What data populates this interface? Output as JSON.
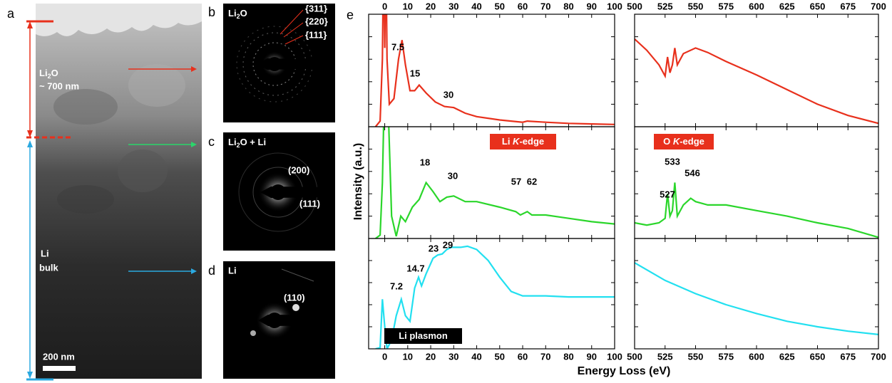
{
  "panel_a": {
    "label": "a",
    "upper_layer": {
      "line1": [
        "Li",
        "2",
        "O"
      ],
      "line2": "~ 700 nm"
    },
    "lower_layer": {
      "line1": "Li",
      "line2": "bulk"
    },
    "scale_bar": "200 nm"
  },
  "panel_b": {
    "label": "b",
    "title": [
      "Li",
      "2",
      "O"
    ],
    "rings": [
      "{311}",
      "{220}",
      "{111}"
    ]
  },
  "panel_c": {
    "label": "c",
    "title": [
      "Li",
      "2",
      "O + Li"
    ],
    "spots": [
      "(200)",
      "(111)"
    ]
  },
  "panel_d": {
    "label": "d",
    "title": "Li",
    "spots": [
      "(110)"
    ]
  },
  "panel_e": {
    "label": "e",
    "xlabel": "Energy Loss (eV)",
    "ylabel": "Intensity (a.u.)"
  },
  "chart_data": [
    {
      "type": "line",
      "xlim": [
        -7,
        100
      ],
      "ylim": [
        0,
        100
      ],
      "xticks": [
        0,
        10,
        20,
        30,
        40,
        50,
        60,
        70,
        80,
        90,
        100
      ],
      "x": [
        -4,
        -2,
        -1,
        -0.5,
        0,
        0.5,
        1,
        2,
        4,
        6,
        7.5,
        9,
        11,
        13,
        15,
        18,
        22,
        26,
        30,
        35,
        40,
        50,
        60,
        62,
        70,
        80,
        90,
        100
      ],
      "series": [
        {
          "color": "#e8301c",
          "values": [
            0,
            5,
            60,
            160,
            70,
            160,
            60,
            20,
            25,
            60,
            77,
            55,
            32,
            32,
            37,
            30,
            22,
            18,
            17,
            12,
            9,
            6,
            4,
            5,
            4,
            3,
            2.5,
            2
          ]
        }
      ],
      "annotations": [
        "7.5",
        "15",
        "30"
      ]
    },
    {
      "type": "line",
      "xlim": [
        500,
        700
      ],
      "ylim": [
        0,
        100
      ],
      "xticks": [
        500,
        525,
        550,
        575,
        600,
        625,
        650,
        675,
        700
      ],
      "x": [
        500,
        510,
        520,
        525,
        527,
        529,
        531,
        533,
        535,
        540,
        550,
        560,
        575,
        600,
        625,
        650,
        675,
        700
      ],
      "series": [
        {
          "color": "#e8301c",
          "values": [
            78,
            68,
            55,
            45,
            62,
            48,
            55,
            70,
            55,
            65,
            70,
            66,
            58,
            46,
            33,
            20,
            10,
            3
          ]
        }
      ],
      "annotations": []
    },
    {
      "type": "line",
      "xlim": [
        -7,
        100
      ],
      "ylim": [
        0,
        100
      ],
      "xticks": [
        0,
        10,
        20,
        30,
        40,
        50,
        60,
        70,
        80,
        90,
        100
      ],
      "x": [
        -4,
        -2,
        -1,
        0,
        1,
        3,
        5,
        7,
        9,
        12,
        15,
        18,
        21,
        24,
        27,
        30,
        35,
        40,
        50,
        57,
        59,
        62,
        64,
        70,
        80,
        90,
        100
      ],
      "series": [
        {
          "color": "#2bd62b",
          "values": [
            0,
            3,
            50,
            150,
            150,
            20,
            2,
            20,
            15,
            28,
            35,
            50,
            42,
            33,
            37,
            38,
            33,
            33,
            28,
            24,
            21,
            24,
            21,
            21,
            18,
            15,
            13
          ]
        }
      ],
      "annotations": [
        "18",
        "30",
        "57",
        "62"
      ],
      "box_label": [
        "Li ",
        "K",
        "-edge"
      ]
    },
    {
      "type": "line",
      "xlim": [
        500,
        700
      ],
      "ylim": [
        0,
        100
      ],
      "xticks": [
        500,
        525,
        550,
        575,
        600,
        625,
        650,
        675,
        700
      ],
      "x": [
        500,
        510,
        520,
        525,
        527,
        529,
        531,
        533,
        535,
        540,
        546,
        550,
        560,
        575,
        600,
        625,
        650,
        675,
        700
      ],
      "series": [
        {
          "color": "#2bd62b",
          "values": [
            14,
            12,
            14,
            18,
            40,
            20,
            25,
            50,
            20,
            30,
            36,
            33,
            30,
            30,
            25,
            20,
            14,
            9,
            1
          ]
        }
      ],
      "annotations": [
        "527",
        "533",
        "546"
      ],
      "box_label": [
        "O ",
        "K",
        "-edge"
      ]
    },
    {
      "type": "line",
      "xlim": [
        -7,
        100
      ],
      "ylim": [
        0,
        100
      ],
      "xticks": [
        0,
        10,
        20,
        30,
        40,
        50,
        60,
        70,
        80,
        90,
        100
      ],
      "x": [
        -4,
        -2,
        -1,
        0,
        1,
        3,
        5,
        7.2,
        9,
        11,
        13,
        14.7,
        16,
        18,
        21,
        23,
        25,
        27,
        29,
        33,
        36,
        40,
        45,
        50,
        55,
        60,
        70,
        80,
        90,
        100
      ],
      "series": [
        {
          "color": "#22e0f0",
          "values": [
            0,
            1,
            45,
            20,
            0,
            8,
            30,
            45,
            30,
            25,
            55,
            65,
            57,
            68,
            82,
            85,
            86,
            90,
            92,
            92,
            93,
            90,
            80,
            65,
            52,
            48,
            48,
            47,
            47,
            47
          ]
        }
      ],
      "annotations": [
        "7.2",
        "14.7",
        "23",
        "29"
      ],
      "box_label": [
        "Li plasmon"
      ]
    },
    {
      "type": "line",
      "xlim": [
        500,
        700
      ],
      "ylim": [
        0,
        100
      ],
      "xticks": [
        500,
        525,
        550,
        575,
        600,
        625,
        650,
        675,
        700
      ],
      "x": [
        500,
        525,
        550,
        575,
        600,
        625,
        650,
        675,
        700
      ],
      "series": [
        {
          "color": "#22e0f0",
          "values": [
            78,
            62,
            50,
            40,
            32,
            25,
            20,
            16,
            13
          ]
        }
      ],
      "annotations": []
    }
  ]
}
